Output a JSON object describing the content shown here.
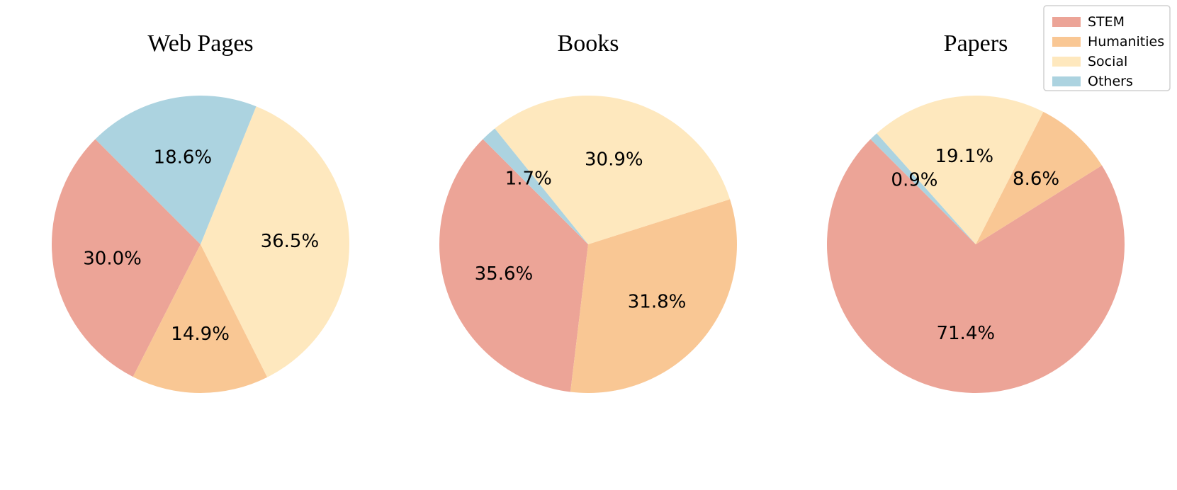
{
  "chart_data": {
    "type": "pie",
    "legend": {
      "placement": "top-right",
      "entries": [
        "STEM",
        "Humanities",
        "Social",
        "Others"
      ]
    },
    "colors": {
      "STEM": "#eca497",
      "Humanities": "#f9c794",
      "Social": "#fee8be",
      "Others": "#acd3e0"
    },
    "charts": [
      {
        "title": "Web Pages",
        "slices": [
          {
            "category": "STEM",
            "value": 30.0,
            "label": "30.0%"
          },
          {
            "category": "Humanities",
            "value": 14.9,
            "label": "14.9%"
          },
          {
            "category": "Social",
            "value": 36.5,
            "label": "36.5%"
          },
          {
            "category": "Others",
            "value": 18.6,
            "label": "18.6%"
          }
        ]
      },
      {
        "title": "Books",
        "slices": [
          {
            "category": "STEM",
            "value": 35.6,
            "label": "35.6%"
          },
          {
            "category": "Humanities",
            "value": 31.8,
            "label": "31.8%"
          },
          {
            "category": "Social",
            "value": 30.9,
            "label": "30.9%"
          },
          {
            "category": "Others",
            "value": 1.7,
            "label": "1.7%"
          }
        ]
      },
      {
        "title": "Papers",
        "slices": [
          {
            "category": "STEM",
            "value": 71.4,
            "label": "71.4%"
          },
          {
            "category": "Humanities",
            "value": 8.6,
            "label": "8.6%"
          },
          {
            "category": "Social",
            "value": 19.1,
            "label": "19.1%"
          },
          {
            "category": "Others",
            "value": 0.9,
            "label": "0.9%"
          }
        ]
      }
    ]
  }
}
